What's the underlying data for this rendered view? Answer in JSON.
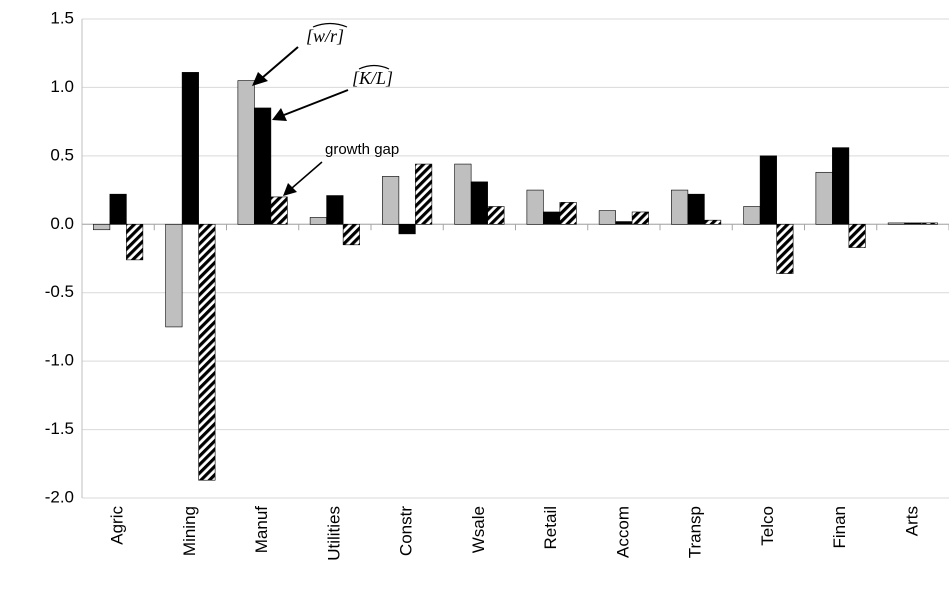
{
  "chart_data": {
    "type": "bar",
    "categories": [
      "Agric",
      "Mining",
      "Manuf",
      "Utilities",
      "Constr",
      "Wsale",
      "Retail",
      "Accom",
      "Transp",
      "Telco",
      "Finan",
      "Arts"
    ],
    "series": [
      {
        "name": "[w/r]",
        "color": "#bfbfbf",
        "hatch": false,
        "values": [
          -0.04,
          -0.75,
          1.05,
          0.05,
          0.35,
          0.44,
          0.25,
          0.1,
          0.25,
          0.13,
          0.38,
          0.01
        ]
      },
      {
        "name": "[K/L]",
        "color": "#000000",
        "hatch": false,
        "values": [
          0.22,
          1.11,
          0.85,
          0.21,
          -0.07,
          0.31,
          0.09,
          0.02,
          0.22,
          0.5,
          0.56,
          0.01
        ]
      },
      {
        "name": "growth gap",
        "color": "#000000",
        "hatch": true,
        "values": [
          -0.26,
          -1.87,
          0.2,
          -0.15,
          0.44,
          0.13,
          0.16,
          0.09,
          0.03,
          -0.36,
          -0.17,
          0.01
        ]
      }
    ],
    "ylim": [
      -2.0,
      1.5
    ],
    "yticks": [
      {
        "value": -2.0,
        "label": "-2.0"
      },
      -1.5,
      {
        "value": -1.0,
        "label": "-1.0"
      },
      -0.5,
      {
        "value": 0.0,
        "label": "0.0"
      },
      0.5,
      {
        "value": 1.0,
        "label": "1.0"
      },
      1.5
    ],
    "grid": true
  }
}
